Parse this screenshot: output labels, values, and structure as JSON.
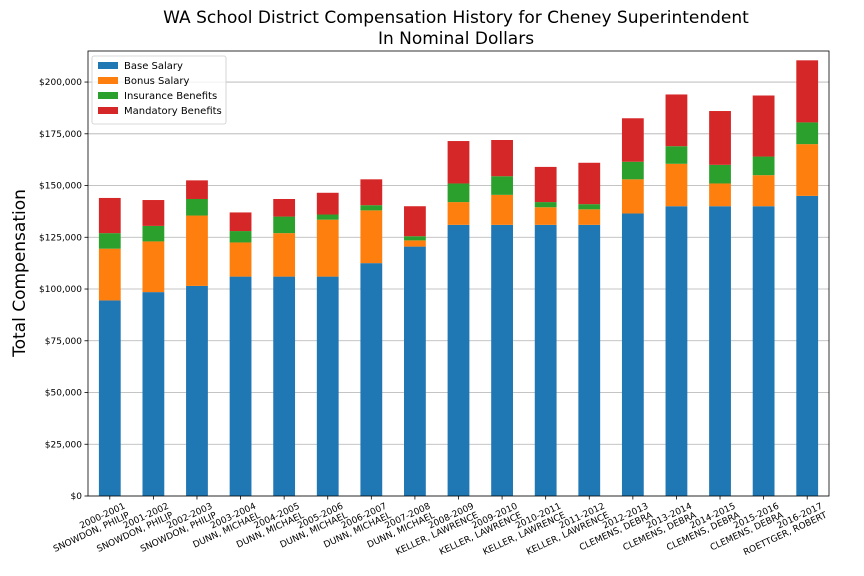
{
  "chart_data": {
    "type": "bar",
    "stacked": true,
    "title_line1": "WA School District Compensation History for Cheney Superintendent",
    "title_line2": "In Nominal Dollars",
    "ylabel": "Total Compensation",
    "xlabel": "",
    "ylim": [
      0,
      215000
    ],
    "yticks": [
      0,
      25000,
      50000,
      75000,
      100000,
      125000,
      150000,
      175000,
      200000
    ],
    "ytick_labels": [
      "$0",
      "$25,000",
      "$50,000",
      "$75,000",
      "$100,000",
      "$125,000",
      "$150,000",
      "$175,000",
      "$200,000"
    ],
    "grid": "horizontal",
    "legend_position": "top-left",
    "categories": [
      [
        "2000-2001",
        "SNOWDON, PHILIP"
      ],
      [
        "2001-2002",
        "SNOWDON, PHILIP"
      ],
      [
        "2002-2003",
        "SNOWDON, PHILIP"
      ],
      [
        "2003-2004",
        "DUNN, MICHAEL"
      ],
      [
        "2004-2005",
        "DUNN, MICHAEL"
      ],
      [
        "2005-2006",
        "DUNN, MICHAEL"
      ],
      [
        "2006-2007",
        "DUNN, MICHAEL"
      ],
      [
        "2007-2008",
        "DUNN, MICHAEL"
      ],
      [
        "2008-2009",
        "KELLER, LAWRENCE"
      ],
      [
        "2009-2010",
        "KELLER, LAWRENCE"
      ],
      [
        "2010-2011",
        "KELLER, LAWRENCE"
      ],
      [
        "2011-2012",
        "KELLER, LAWRENCE"
      ],
      [
        "2012-2013",
        "CLEMENS, DEBRA"
      ],
      [
        "2013-2014",
        "CLEMENS, DEBRA"
      ],
      [
        "2014-2015",
        "CLEMENS, DEBRA"
      ],
      [
        "2015-2016",
        "CLEMENS, DEBRA"
      ],
      [
        "2016-2017",
        "ROETTGER, ROBERT"
      ]
    ],
    "series": [
      {
        "name": "Base Salary",
        "color": "#1f77b4",
        "values": [
          94500,
          98500,
          101500,
          106000,
          106000,
          106000,
          112500,
          120500,
          131000,
          131000,
          131000,
          131000,
          136500,
          140000,
          140000,
          140000,
          145000
        ]
      },
      {
        "name": "Bonus Salary",
        "color": "#ff7f0e",
        "values": [
          25000,
          24500,
          34000,
          16500,
          21000,
          27500,
          25500,
          3000,
          11000,
          14500,
          8500,
          7500,
          16500,
          20500,
          11000,
          15000,
          25000
        ]
      },
      {
        "name": "Insurance Benefits",
        "color": "#2ca02c",
        "values": [
          7500,
          7500,
          8000,
          5500,
          8000,
          2500,
          2500,
          2000,
          9000,
          9000,
          2500,
          2500,
          8500,
          8500,
          9000,
          9000,
          10500
        ]
      },
      {
        "name": "Mandatory Benefits",
        "color": "#d62728",
        "values": [
          17000,
          12500,
          9000,
          9000,
          8500,
          10500,
          12500,
          14500,
          20500,
          17500,
          17000,
          20000,
          21000,
          25000,
          26000,
          29500,
          30000
        ]
      }
    ]
  }
}
